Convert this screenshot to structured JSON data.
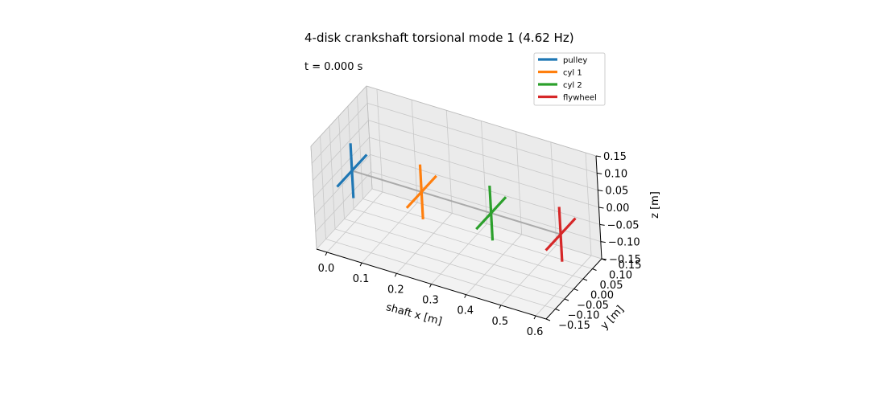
{
  "chart_data": {
    "type": "line",
    "projection": "3d",
    "title": "4-disk crankshaft torsional mode 1 (4.62 Hz)",
    "annotation": "t = 0.000 s",
    "xlabel": "shaft x [m]",
    "ylabel": "y [m]",
    "zlabel": "z [m]",
    "xlim": [
      -0.03,
      0.63
    ],
    "ylim": [
      -0.15,
      0.15
    ],
    "zlim": [
      -0.15,
      0.15
    ],
    "x_ticks": [
      0.0,
      0.1,
      0.2,
      0.3,
      0.4,
      0.5,
      0.6
    ],
    "x_tick_labels": [
      "0.0",
      "0.1",
      "0.2",
      "0.3",
      "0.4",
      "0.5",
      "0.6"
    ],
    "y_ticks": [
      -0.15,
      -0.1,
      -0.05,
      0.0,
      0.05,
      0.1,
      0.15
    ],
    "y_tick_labels": [
      "−0.15",
      "−0.10",
      "−0.05",
      "0.00",
      "0.05",
      "0.10",
      "0.15"
    ],
    "z_ticks": [
      -0.15,
      -0.1,
      -0.05,
      0.0,
      0.05,
      0.1,
      0.15
    ],
    "z_tick_labels": [
      "−0.15",
      "−0.10",
      "−0.05",
      "0.00",
      "0.05",
      "0.10",
      "0.15"
    ],
    "grid": true,
    "legend_position": "top-right",
    "shaft": {
      "x": [
        0.0,
        0.6
      ],
      "y": [
        0,
        0
      ],
      "z": [
        0,
        0
      ],
      "color": "#aaaaaa"
    },
    "series": [
      {
        "name": "pulley",
        "color": "#1f77b4",
        "x": 0.0,
        "radius": 0.08
      },
      {
        "name": "cyl 1",
        "color": "#ff7f0e",
        "x": 0.2,
        "radius": 0.08
      },
      {
        "name": "cyl 2",
        "color": "#2ca02c",
        "x": 0.4,
        "radius": 0.08
      },
      {
        "name": "flywheel",
        "color": "#d62728",
        "x": 0.6,
        "radius": 0.08
      }
    ]
  }
}
